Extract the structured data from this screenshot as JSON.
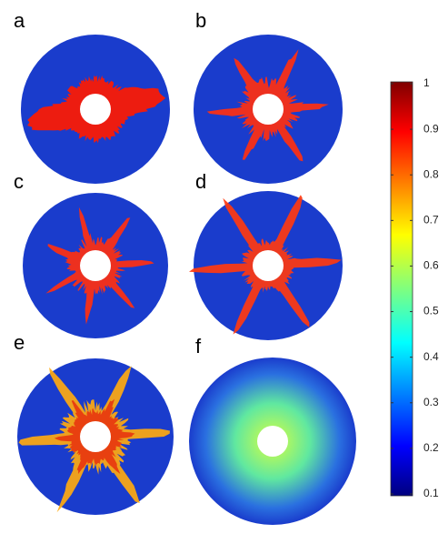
{
  "chart_data": {
    "type": "colorbar",
    "panels": [
      "a",
      "b",
      "c",
      "d",
      "e",
      "f"
    ],
    "colorbar": {
      "lim": [
        0.1,
        1
      ],
      "ticks": [
        0.1,
        0.2,
        0.3,
        0.4,
        0.5,
        0.6,
        0.7,
        0.8,
        0.9,
        1
      ]
    }
  }
}
